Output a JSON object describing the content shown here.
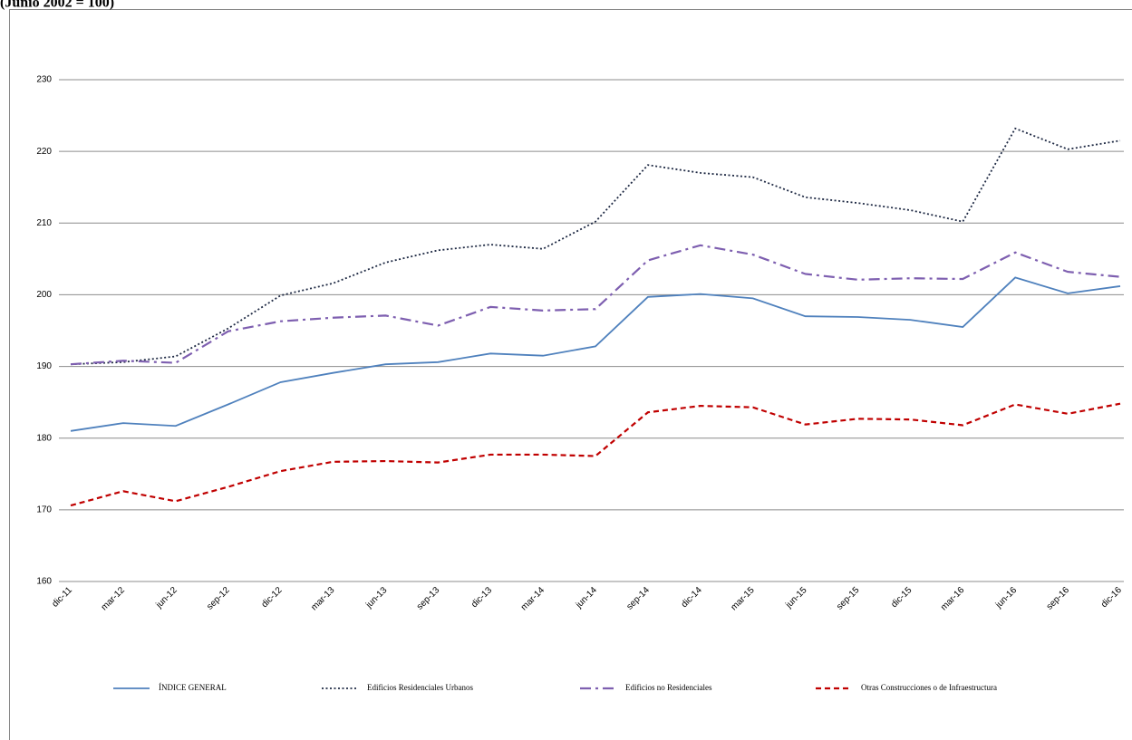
{
  "chart_data": {
    "type": "line",
    "subtitle": "(Junio 2002 = 100)",
    "categories": [
      "dic-11",
      "mar-12",
      "jun-12",
      "sep-12",
      "dic-12",
      "mar-13",
      "jun-13",
      "sep-13",
      "dic-13",
      "mar-14",
      "jun-14",
      "sep-14",
      "dic-14",
      "mar-15",
      "jun-15",
      "sep-15",
      "dic-15",
      "mar-16",
      "jun-16",
      "sep-16",
      "dic-16"
    ],
    "series": [
      {
        "name": "ÍNDICE GENERAL",
        "color": "#4f81bd",
        "dash": "solid",
        "values": [
          181.0,
          182.1,
          181.7,
          184.7,
          187.8,
          189.1,
          190.3,
          190.6,
          191.8,
          191.5,
          192.8,
          199.7,
          200.1,
          199.5,
          197.0,
          196.9,
          196.5,
          195.5,
          202.4,
          200.2,
          201.2
        ]
      },
      {
        "name": "Edificios Residenciales Urbanos",
        "color": "#1f2a44",
        "dash": "dotted",
        "values": [
          190.3,
          190.6,
          191.4,
          195.3,
          199.9,
          201.6,
          204.5,
          206.2,
          207.0,
          206.4,
          210.2,
          218.1,
          217.0,
          216.4,
          213.6,
          212.8,
          211.8,
          210.2,
          223.2,
          220.3,
          221.5
        ]
      },
      {
        "name": "Edificios no Residenciales",
        "color": "#7e5fb0",
        "dash": "dashdot",
        "values": [
          190.3,
          190.8,
          190.5,
          194.9,
          196.3,
          196.8,
          197.1,
          195.7,
          198.3,
          197.8,
          198.0,
          204.8,
          206.9,
          205.6,
          202.9,
          202.1,
          202.3,
          202.2,
          205.9,
          203.2,
          202.5
        ]
      },
      {
        "name": "Otras Construcciones o de Infraestructura",
        "color": "#c00000",
        "dash": "dashed",
        "values": [
          170.6,
          172.6,
          171.2,
          173.2,
          175.4,
          176.7,
          176.8,
          176.6,
          177.7,
          177.7,
          177.5,
          183.6,
          184.5,
          184.3,
          181.9,
          182.7,
          182.6,
          181.8,
          184.7,
          183.4,
          184.8
        ]
      }
    ],
    "ylim": [
      160,
      230
    ],
    "yticks": [
      160,
      170,
      180,
      190,
      200,
      210,
      220,
      230
    ],
    "grid": true,
    "legend": "bottom"
  }
}
